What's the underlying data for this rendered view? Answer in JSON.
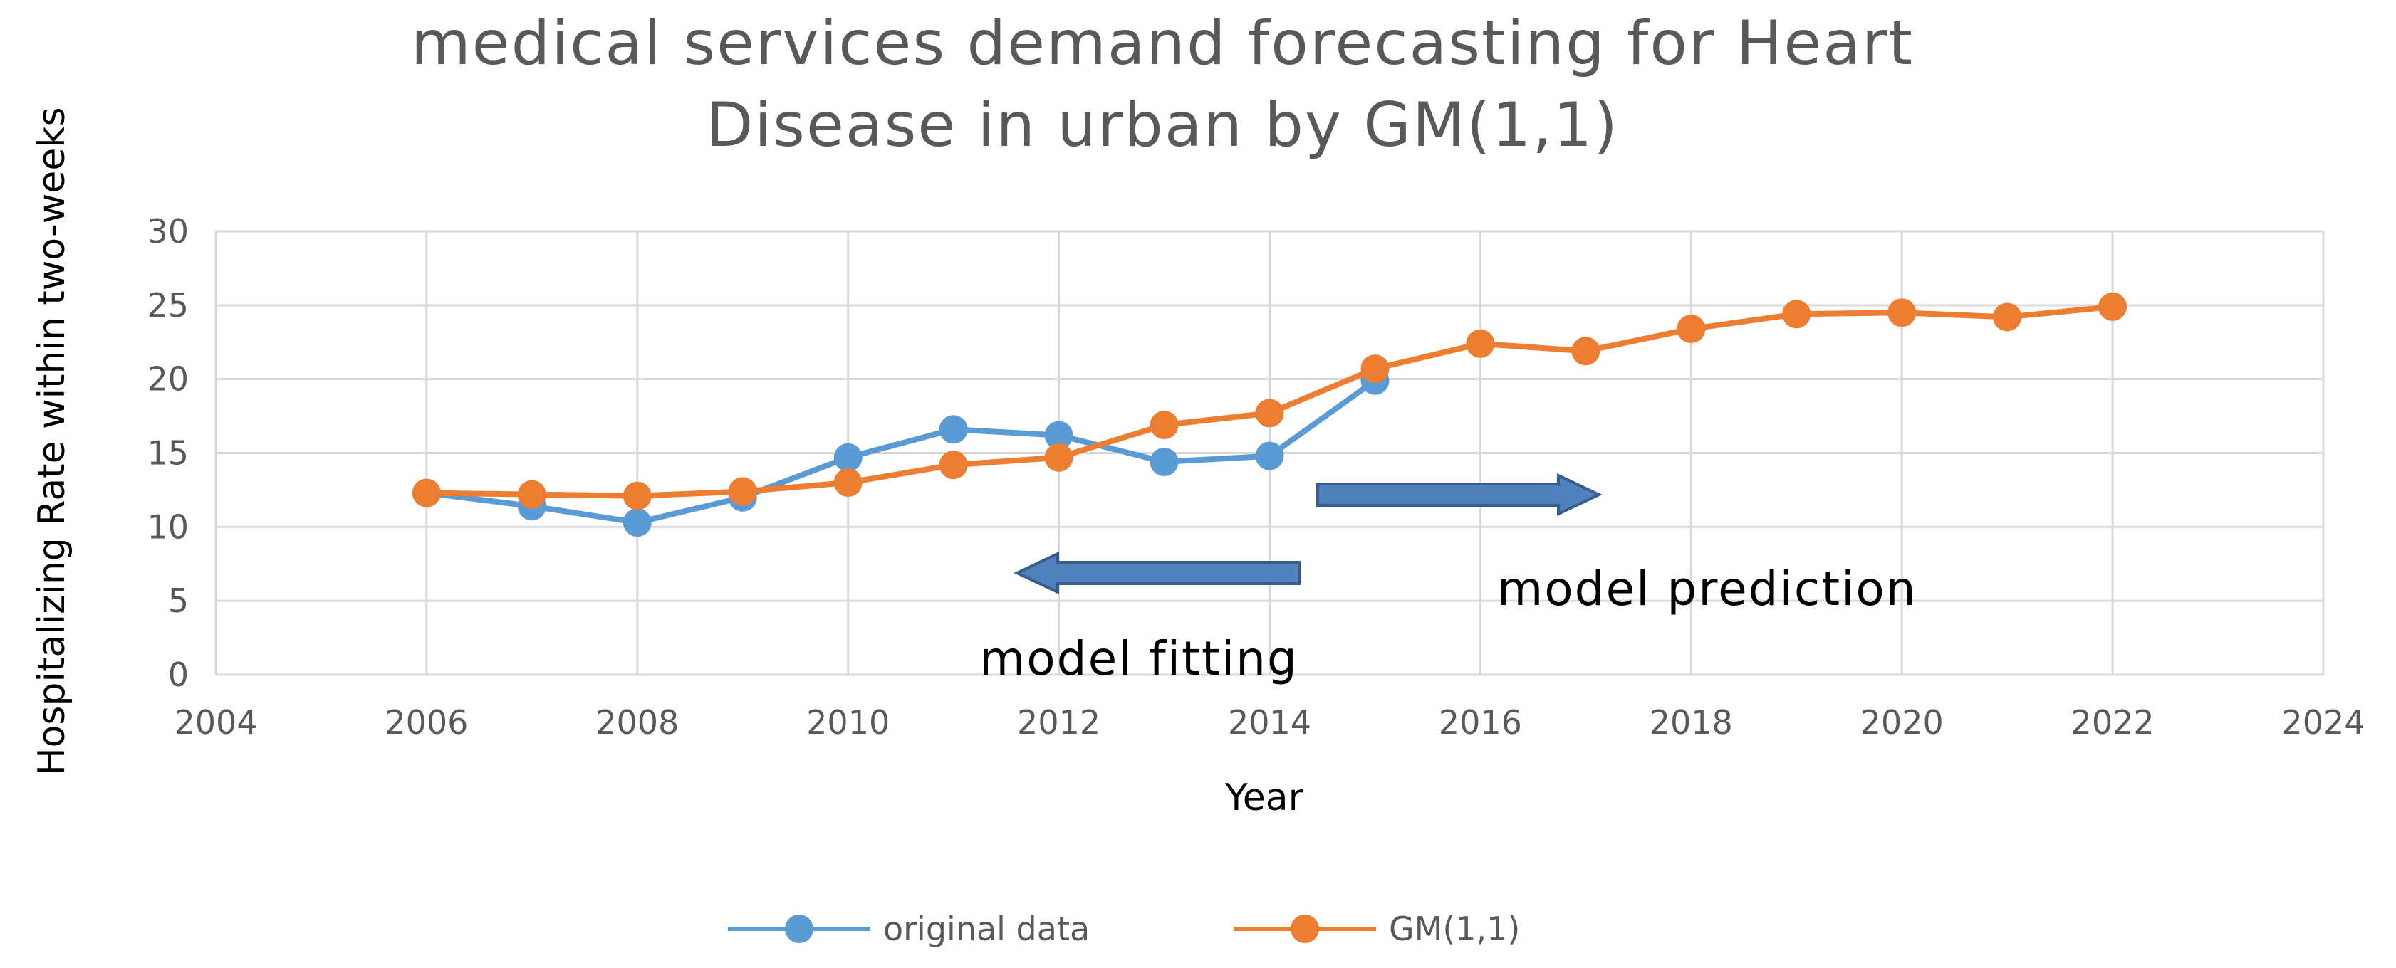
{
  "chart_data": {
    "type": "line",
    "title_lines": [
      "medical services demand forecasting for Heart",
      "Disease in urban by GM(1,1)"
    ],
    "xlabel": "Year",
    "ylabel": "Hospitalizing  Rate within two-weeks",
    "xlim": [
      2004,
      2024
    ],
    "ylim": [
      0,
      30
    ],
    "xticks": [
      2004,
      2006,
      2008,
      2010,
      2012,
      2014,
      2016,
      2018,
      2020,
      2022,
      2024
    ],
    "yticks": [
      0,
      5,
      10,
      15,
      20,
      25,
      30
    ],
    "grid": true,
    "legend_position": "bottom",
    "series": [
      {
        "name": "original data",
        "color": "#5b9bd5",
        "x": [
          2006,
          2007,
          2008,
          2009,
          2010,
          2011,
          2012,
          2013,
          2014,
          2015
        ],
        "values": [
          12.3,
          11.4,
          10.3,
          12.0,
          14.7,
          16.6,
          16.2,
          14.4,
          14.8,
          19.9
        ]
      },
      {
        "name": "GM(1,1)",
        "color": "#ed7d31",
        "x": [
          2006,
          2007,
          2008,
          2009,
          2010,
          2011,
          2012,
          2013,
          2014,
          2015,
          2016,
          2017,
          2018,
          2019,
          2020,
          2021,
          2022
        ],
        "values": [
          12.3,
          12.2,
          12.1,
          12.4,
          13.0,
          14.2,
          14.7,
          16.9,
          17.7,
          20.7,
          22.4,
          21.9,
          23.4,
          24.4,
          24.5,
          24.2,
          24.9
        ]
      }
    ],
    "annotations": [
      {
        "text": "model fitting",
        "arrow": "left",
        "color": "#4472c4"
      },
      {
        "text": "model prediction",
        "arrow": "right",
        "color": "#4472c4"
      }
    ]
  }
}
